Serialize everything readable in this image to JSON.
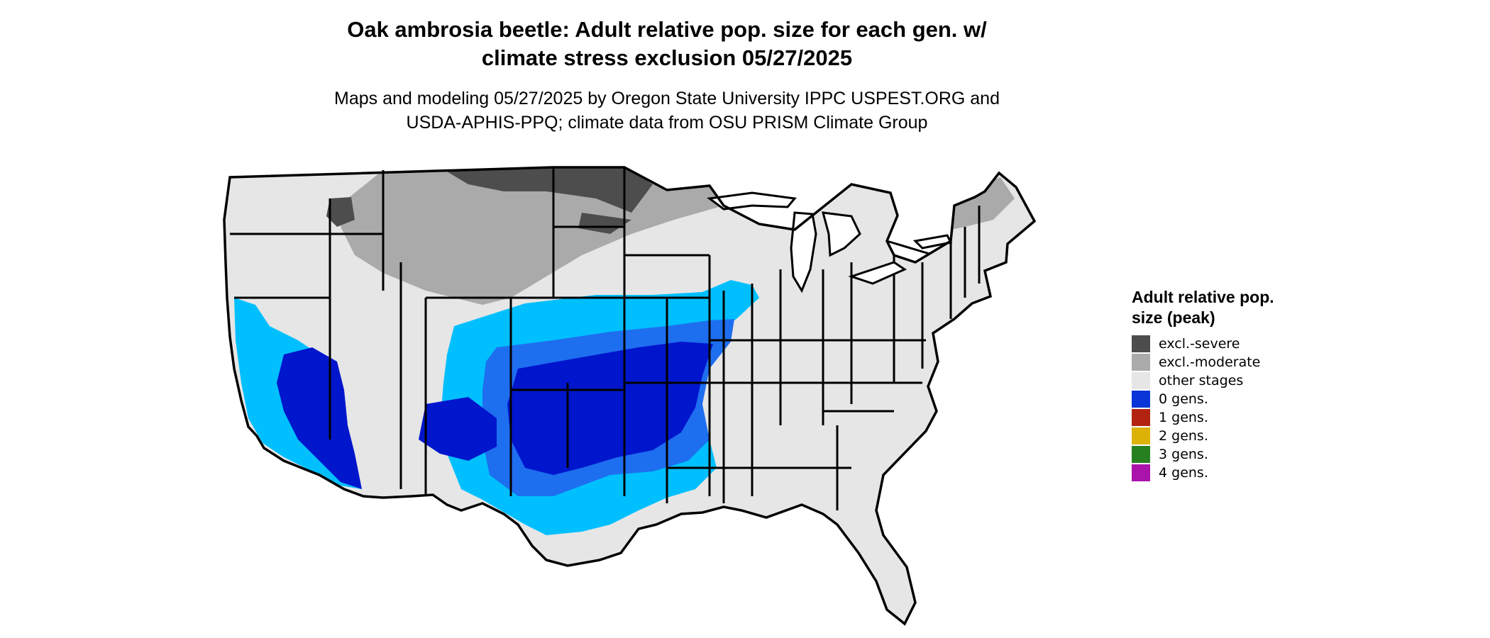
{
  "title_line1": "Oak ambrosia beetle: Adult relative pop. size for each gen. w/",
  "title_line2": "climate stress exclusion 05/27/2025",
  "subtitle_line1": "Maps and modeling 05/27/2025 by Oregon State University IPPC USPEST.ORG and",
  "subtitle_line2": "USDA-APHIS-PPQ; climate data from OSU PRISM Climate Group",
  "legend": {
    "title": "Adult relative pop. size (peak)",
    "items": [
      {
        "label": "excl.-severe",
        "color": "#4d4d4d"
      },
      {
        "label": "excl.-moderate",
        "color": "#aaaaaa"
      },
      {
        "label": "other stages",
        "color": "#e6e6e6"
      },
      {
        "label": "0 gens.",
        "color": "#0a36d8"
      },
      {
        "label": "1 gens.",
        "color": "#b22411"
      },
      {
        "label": "2 gens.",
        "color": "#dcb207"
      },
      {
        "label": "3 gens.",
        "color": "#268020"
      },
      {
        "label": "4 gens.",
        "color": "#aa14aa"
      }
    ]
  },
  "map_colors": {
    "land": "#e6e6e6",
    "border": "#000000",
    "lake": "#ffffff",
    "zone_light_blue": "#00bfff",
    "zone_mid_blue": "#1e6ef0",
    "zone_deep_blue": "#0016cc",
    "zone_moderate": "#aaaaaa",
    "zone_severe": "#4d4d4d",
    "zone_orange": "#ff4500"
  }
}
